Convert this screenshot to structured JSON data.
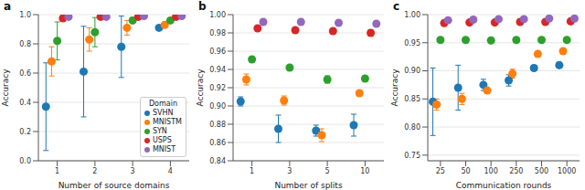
{
  "chart_data": [
    {
      "type": "scatter",
      "title": "a",
      "x_label": "Number of source domains",
      "y_label": "Accuracy",
      "categories": [
        "1",
        "2",
        "3",
        "4"
      ],
      "ylim": [
        0,
        1
      ],
      "yticks": [
        {
          "value": 0,
          "label": "0.0"
        },
        0.2,
        0.4,
        0.6,
        0.8,
        {
          "value": 1,
          "label": "1.0"
        }
      ],
      "grid": true,
      "legend": "lower right",
      "legend_title": "Domain",
      "marker": "circle",
      "series": [
        {
          "name": "SVHN",
          "color": "#1f77b4",
          "values": [
            0.37,
            0.61,
            0.78,
            0.91
          ],
          "errors": [
            0.3,
            0.31,
            0.21,
            0.01
          ]
        },
        {
          "name": "MNISTM",
          "color": "#ff7f0e",
          "values": [
            0.68,
            0.83,
            0.91,
            0.93
          ],
          "errors": [
            0.1,
            0.08,
            0.05,
            0.01
          ]
        },
        {
          "name": "SYN",
          "color": "#2ca02c",
          "values": [
            0.82,
            0.88,
            0.96,
            0.96
          ],
          "errors": [
            0.13,
            0.1,
            0.02,
            0.01
          ]
        },
        {
          "name": "USPS",
          "color": "#d62728",
          "values": [
            0.975,
            0.985,
            0.985,
            0.985
          ],
          "errors": [
            0.01,
            0.005,
            0.005,
            0.003
          ]
        },
        {
          "name": "MNIST",
          "color": "#9467bd",
          "values": [
            0.985,
            0.985,
            0.99,
            0.99
          ],
          "errors": [
            0.01,
            0.005,
            0.003,
            0.002
          ]
        }
      ]
    },
    {
      "type": "scatter",
      "title": "b",
      "x_label": "Number of splits",
      "y_label": "Accuracy",
      "categories": [
        "1",
        "3",
        "5",
        "10"
      ],
      "ylim": [
        0.84,
        1
      ],
      "yticks": [
        0.84,
        0.86,
        0.88,
        {
          "value": 0.9,
          "label": "0.90"
        },
        0.92,
        0.94,
        0.96,
        0.98,
        {
          "value": 1,
          "label": "1.00"
        }
      ],
      "grid": true,
      "marker": "circle",
      "series": [
        {
          "name": "SVHN",
          "color": "#1f77b4",
          "values": [
            0.905,
            0.875,
            0.873,
            0.879
          ],
          "errors": [
            0.005,
            0.015,
            0.006,
            0.012
          ]
        },
        {
          "name": "MNISTM",
          "color": "#ff7f0e",
          "values": [
            0.929,
            0.906,
            0.868,
            0.914
          ],
          "errors": [
            0.006,
            0.005,
            0.007,
            0.003
          ]
        },
        {
          "name": "SYN",
          "color": "#2ca02c",
          "values": [
            0.951,
            0.942,
            0.929,
            0.93
          ],
          "errors": [
            0.002,
            0.002,
            0.004,
            0.002
          ]
        },
        {
          "name": "USPS",
          "color": "#d62728",
          "values": [
            0.985,
            0.983,
            0.982,
            0.98
          ],
          "errors": [
            0.002,
            0.001,
            0.002,
            0.003
          ]
        },
        {
          "name": "MNIST",
          "color": "#9467bd",
          "values": [
            0.992,
            0.992,
            0.991,
            0.99
          ],
          "errors": [
            0.001,
            0.001,
            0.001,
            0.001
          ]
        }
      ]
    },
    {
      "type": "scatter",
      "title": "c",
      "x_label": "Communication rounds",
      "y_label": "Accuracy",
      "categories": [
        "25",
        "50",
        "100",
        "250",
        "500",
        "1000"
      ],
      "ylim": [
        0.74,
        1
      ],
      "yticks": [
        0.75,
        {
          "value": 0.8,
          "label": "0.80"
        },
        0.85,
        {
          "value": 0.9,
          "label": "0.90"
        },
        0.95,
        {
          "value": 1,
          "label": "1.00"
        }
      ],
      "grid": true,
      "marker": "circle",
      "series": [
        {
          "name": "SVHN",
          "color": "#1f77b4",
          "values": [
            0.845,
            0.87,
            0.875,
            0.883,
            0.905,
            0.91
          ],
          "errors": [
            0.06,
            0.04,
            0.01,
            0.01,
            0.005,
            0.005
          ]
        },
        {
          "name": "MNISTM",
          "color": "#ff7f0e",
          "values": [
            0.84,
            0.85,
            0.865,
            0.895,
            0.93,
            0.935
          ],
          "errors": [
            0.01,
            0.01,
            0.005,
            0.008,
            0.005,
            0.004
          ]
        },
        {
          "name": "SYN",
          "color": "#2ca02c",
          "values": [
            0.955,
            0.955,
            0.954,
            0.955,
            0.955,
            0.955
          ],
          "errors": [
            0.002,
            0.002,
            0.002,
            0.002,
            0.002,
            0.002
          ]
        },
        {
          "name": "USPS",
          "color": "#d62728",
          "values": [
            0.985,
            0.986,
            0.986,
            0.987,
            0.987,
            0.988
          ],
          "errors": [
            0.002,
            0.002,
            0.002,
            0.002,
            0.002,
            0.002
          ]
        },
        {
          "name": "MNIST",
          "color": "#9467bd",
          "values": [
            0.99,
            0.991,
            0.992,
            0.992,
            0.993,
            0.993
          ],
          "errors": [
            0.001,
            0.001,
            0.001,
            0.001,
            0.001,
            0.001
          ]
        }
      ]
    }
  ]
}
